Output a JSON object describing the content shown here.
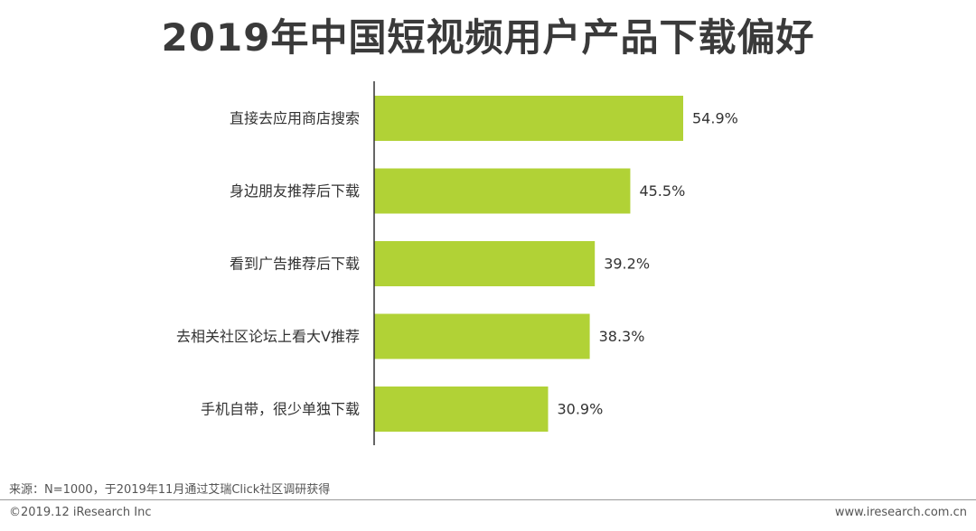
{
  "title": "2019年中国短视频用户产品下载偏好",
  "chart_data": {
    "type": "bar",
    "orientation": "horizontal",
    "title": "2019年中国短视频用户产品下载偏好",
    "categories": [
      "直接去应用商店搜索",
      "身边朋友推荐后下载",
      "看到广告推荐后下载",
      "去相关社区论坛上看大V推荐",
      "手机自带，很少单独下载"
    ],
    "values": [
      54.9,
      45.5,
      39.2,
      38.3,
      30.9
    ],
    "value_labels": [
      "54.9%",
      "45.5%",
      "39.2%",
      "38.3%",
      "30.9%"
    ],
    "unit": "%",
    "xlim": [
      0,
      100
    ],
    "grid": false,
    "legend": "none",
    "colors": {
      "bar": "#b1d236",
      "axis": "#333333",
      "label": "#333333"
    }
  },
  "footer": {
    "source": "来源：N=1000，于2019年11月通过艾瑞Click社区调研获得",
    "copyright": "©2019.12 iResearch Inc",
    "website": "www.iresearch.com.cn"
  }
}
